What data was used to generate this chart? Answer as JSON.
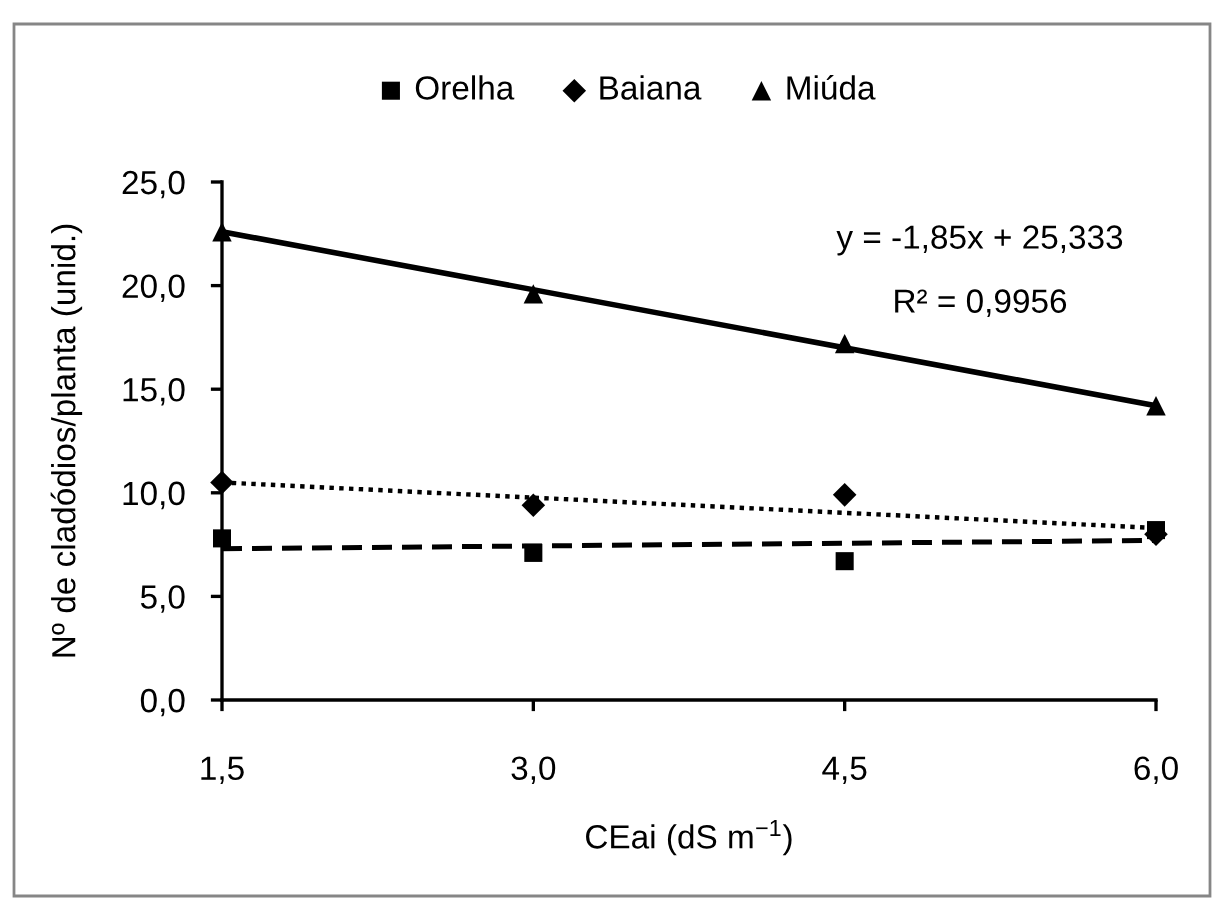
{
  "chart_data": {
    "type": "scatter",
    "xlabel": "CEai (dS m$^{−1}$)",
    "ylabel": "Nº de cladódios/planta (unid.)",
    "annotations": [
      "y = -1,85x + 25,333",
      "R² = 0,9956"
    ],
    "xlim": [
      1.5,
      6.0
    ],
    "ylim": [
      0,
      25
    ],
    "xticks": [
      {
        "value": 1.5,
        "label": "1,5"
      },
      {
        "value": 3.0,
        "label": "3,0"
      },
      {
        "value": 4.5,
        "label": "4,5"
      },
      {
        "value": 6.0,
        "label": "6,0"
      }
    ],
    "yticks": [
      {
        "value": 0,
        "label": "0,0"
      },
      {
        "value": 5,
        "label": "5,0"
      },
      {
        "value": 10,
        "label": "10,0"
      },
      {
        "value": 15,
        "label": "15,0"
      },
      {
        "value": 20,
        "label": "20,0"
      },
      {
        "value": 25,
        "label": "25,0"
      }
    ],
    "grid": false,
    "legend": "top",
    "series": [
      {
        "name": "Orelha",
        "marker": "square",
        "color": "#000000",
        "x": [
          1.5,
          3.0,
          4.5,
          6.0
        ],
        "values": [
          7.8,
          7.1,
          6.7,
          8.2
        ]
      },
      {
        "name": "Baiana",
        "marker": "diamond",
        "color": "#000000",
        "x": [
          1.5,
          3.0,
          4.5,
          6.0
        ],
        "values": [
          10.5,
          9.4,
          9.9,
          8.0
        ]
      },
      {
        "name": "Miúda",
        "marker": "triangle",
        "color": "#000000",
        "x": [
          1.5,
          3.0,
          4.5,
          6.0
        ],
        "values": [
          22.6,
          19.6,
          17.2,
          14.2
        ]
      },
      {
        "type": "line",
        "line_style": "dashed",
        "marker": "none",
        "color": "#000000",
        "x": [
          1.5,
          6.0
        ],
        "values": [
          7.3,
          7.7
        ]
      },
      {
        "type": "line",
        "line_style": "dotted",
        "marker": "none",
        "color": "#000000",
        "x": [
          1.5,
          6.0
        ],
        "values": [
          10.5,
          8.3
        ]
      },
      {
        "type": "line",
        "line_style": "solid",
        "marker": "none",
        "color": "#000000",
        "x": [
          1.5,
          6.0
        ],
        "values": [
          22.6,
          14.2
        ]
      }
    ]
  }
}
